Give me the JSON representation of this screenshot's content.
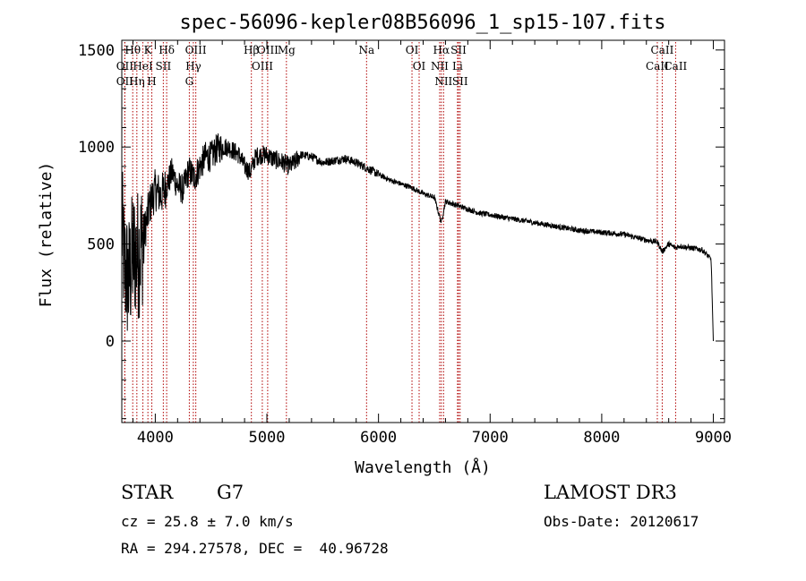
{
  "chart_data": {
    "type": "line",
    "title": "spec-56096-kepler08B56096_1_sp15-107.fits",
    "xlabel": "Wavelength (Å)",
    "ylabel": "Flux (relative)",
    "xlim": [
      3700,
      9100
    ],
    "ylim": [
      -420,
      1550
    ],
    "xticks": [
      4000,
      5000,
      6000,
      7000,
      8000,
      9000
    ],
    "yticks": [
      0,
      500,
      1000,
      1500
    ],
    "spectrum_anchors": {
      "wavelength": [
        3700,
        3720,
        3760,
        3800,
        3850,
        3900,
        3950,
        4000,
        4050,
        4100,
        4150,
        4200,
        4250,
        4300,
        4350,
        4400,
        4450,
        4500,
        4550,
        4600,
        4650,
        4700,
        4750,
        4800,
        4850,
        4900,
        4950,
        5000,
        5050,
        5100,
        5150,
        5200,
        5250,
        5300,
        5400,
        5500,
        5600,
        5700,
        5800,
        5900,
        6000,
        6100,
        6200,
        6300,
        6400,
        6500,
        6563,
        6600,
        6700,
        6800,
        6900,
        7000,
        7200,
        7400,
        7600,
        7800,
        8000,
        8200,
        8400,
        8500,
        8542,
        8600,
        8662,
        8700,
        8800,
        8900,
        8950,
        8980,
        9000
      ],
      "flux": [
        600,
        400,
        300,
        450,
        450,
        550,
        700,
        780,
        750,
        800,
        870,
        800,
        780,
        880,
        840,
        900,
        950,
        950,
        990,
        1000,
        1000,
        980,
        960,
        900,
        870,
        950,
        960,
        960,
        940,
        930,
        920,
        900,
        920,
        960,
        950,
        920,
        930,
        940,
        920,
        890,
        860,
        830,
        810,
        790,
        760,
        740,
        610,
        720,
        700,
        680,
        660,
        650,
        630,
        610,
        590,
        570,
        560,
        550,
        520,
        510,
        460,
        500,
        480,
        490,
        480,
        470,
        440,
        420,
        0
      ]
    },
    "spectral_lines": [
      {
        "label": "Hθ",
        "wavelength": 3798
      },
      {
        "label": "OII",
        "wavelength": 3727
      },
      {
        "label": "OII",
        "wavelength": 3727
      },
      {
        "label": "Hη",
        "wavelength": 3835
      },
      {
        "label": "K",
        "wavelength": 3934
      },
      {
        "label": "HeI",
        "wavelength": 3889
      },
      {
        "label": "H",
        "wavelength": 3969
      },
      {
        "label": "Hδ",
        "wavelength": 4102
      },
      {
        "label": "SII",
        "wavelength": 4072
      },
      {
        "label": "OIII",
        "wavelength": 4363
      },
      {
        "label": "Hγ",
        "wavelength": 4341
      },
      {
        "label": "G",
        "wavelength": 4305
      },
      {
        "label": "Hβ",
        "wavelength": 4861
      },
      {
        "label": "OIII",
        "wavelength": 5007
      },
      {
        "label": "OIII",
        "wavelength": 4959
      },
      {
        "label": "Mg",
        "wavelength": 5175
      },
      {
        "label": "Na",
        "wavelength": 5893
      },
      {
        "label": "OI",
        "wavelength": 6300
      },
      {
        "label": "OI",
        "wavelength": 6364
      },
      {
        "label": "Hα",
        "wavelength": 6563
      },
      {
        "label": "NII",
        "wavelength": 6548
      },
      {
        "label": "NII",
        "wavelength": 6583
      },
      {
        "label": "SII",
        "wavelength": 6717
      },
      {
        "label": "Li",
        "wavelength": 6708
      },
      {
        "label": "SII",
        "wavelength": 6731
      },
      {
        "label": "CaII",
        "wavelength": 8542
      },
      {
        "label": "CaII",
        "wavelength": 8498
      },
      {
        "label": "CaII",
        "wavelength": 8662
      }
    ]
  },
  "info": {
    "object_class": "STAR",
    "subclass": "G7",
    "survey": "LAMOST DR3",
    "redshift": "cz = 25.8 ± 7.0 km/s",
    "obs_date": "Obs-Date: 20120617",
    "coordinates": "RA = 294.27578, DEC =  40.96728"
  }
}
